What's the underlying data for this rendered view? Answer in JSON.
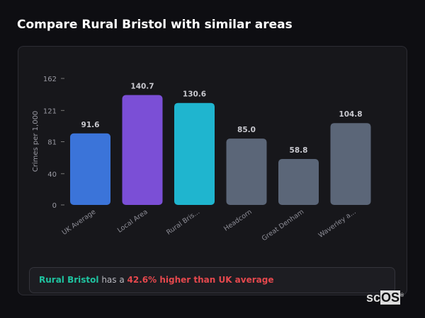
{
  "title": "Compare Rural Bristol with similar areas",
  "chart_data": {
    "type": "bar",
    "ylabel": "Crimes per 1,000",
    "categories": [
      "UK Average",
      "Local Area",
      "Rural Bris...",
      "Headcorn",
      "Great Denham",
      "Waverley a..."
    ],
    "values": [
      91.6,
      140.7,
      130.6,
      85.0,
      58.8,
      104.8
    ],
    "data_labels": [
      "91.6",
      "140.7",
      "130.6",
      "85.0",
      "58.8",
      "104.8"
    ],
    "colors": [
      "#3b74d9",
      "#7b4fd6",
      "#1fb5cf",
      "#5b6678",
      "#5b6678",
      "#5b6678"
    ],
    "yticks": [
      0,
      40,
      81,
      121,
      162
    ],
    "ylim": [
      0,
      162
    ],
    "grid": false
  },
  "note": {
    "area": "Rural Bristol",
    "middle": " has a ",
    "comparison": "42.6% higher than UK average"
  },
  "logo": {
    "text1": "sc",
    "text2": "OS",
    "mark": "®"
  }
}
